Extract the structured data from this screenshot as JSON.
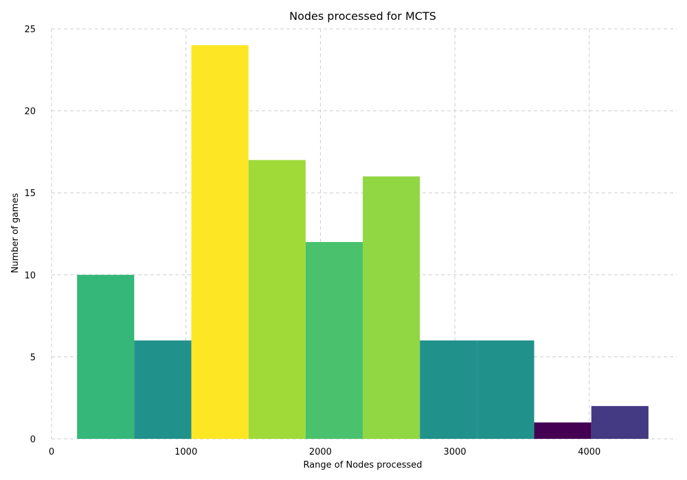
{
  "chart_data": {
    "type": "bar",
    "title": "Nodes processed for MCTS",
    "xlabel": "Range of Nodes processed",
    "ylabel": "Number of games",
    "xlim": [
      0,
      4650
    ],
    "ylim": [
      0,
      25
    ],
    "xticks": [
      0,
      1000,
      2000,
      3000,
      4000
    ],
    "yticks": [
      0,
      5,
      10,
      15,
      20,
      25
    ],
    "grid": true,
    "bin_edges": [
      190,
      615,
      1040,
      1465,
      1890,
      2315,
      2740,
      3165,
      3590,
      4015,
      4440
    ],
    "values": [
      10,
      6,
      24,
      17,
      12,
      16,
      6,
      6,
      1,
      2
    ],
    "colors": [
      "#35b779",
      "#21918c",
      "#fde725",
      "#a0da39",
      "#4ac16d",
      "#90d743",
      "#21918c",
      "#21918c",
      "#440154",
      "#443983"
    ]
  }
}
